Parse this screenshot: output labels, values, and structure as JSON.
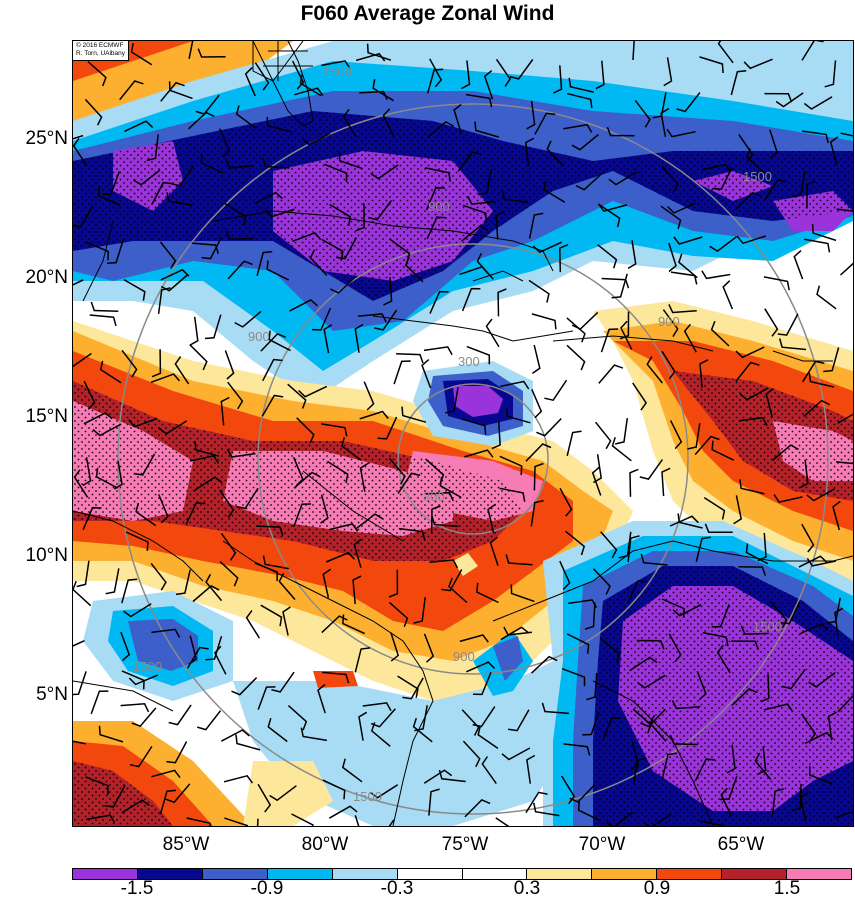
{
  "title": "F060 Average Zonal Wind",
  "credit": {
    "line1": "© 2016 ECMWF",
    "line2": "R. Torn, UAlbany"
  },
  "lat_labels": [
    "25°N",
    "20°N",
    "15°N",
    "10°N",
    "5°N"
  ],
  "lon_labels": [
    "85°W",
    "80°W",
    "75°W",
    "70°W",
    "65°W"
  ],
  "colorbar": {
    "colors": [
      "#9a33d9",
      "#07088f",
      "#3c5fc9",
      "#00b9f2",
      "#a8dcf5",
      "#ffffff",
      "#ffffff",
      "#fde79b",
      "#fdb030",
      "#f2480e",
      "#b3222a",
      "#f77bb4"
    ],
    "labels": [
      "-1.5",
      "-0.9",
      "-0.3",
      "0.3",
      "0.9",
      "1.5"
    ]
  },
  "range_rings": {
    "labels": [
      "300",
      "900",
      "1500"
    ]
  },
  "map": {
    "lon_range": [
      -89.5,
      -60.5
    ],
    "lat_range": [
      0.5,
      28.5
    ],
    "overlays": [
      "filled contours",
      "range rings",
      "wind barbs",
      "stippling",
      "coastlines"
    ]
  }
}
